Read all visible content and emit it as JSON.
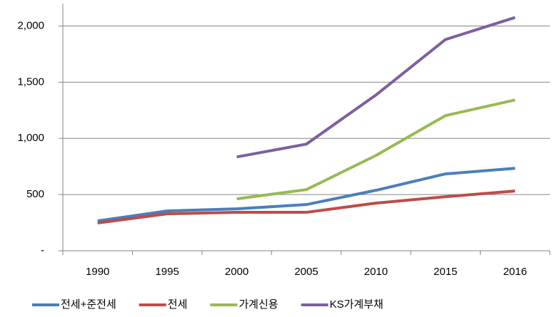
{
  "chart_data": {
    "type": "line",
    "categories": [
      "1990",
      "1995",
      "2000",
      "2005",
      "2010",
      "2015",
      "2016"
    ],
    "series": [
      {
        "name": "전세+준전세",
        "color": "#4a7ebb",
        "values": [
          266,
          354,
          373,
          411,
          538,
          684,
          734
        ]
      },
      {
        "name": "전세",
        "color": "#be4b48",
        "values": [
          247,
          329,
          342,
          342,
          424,
          481,
          532
        ]
      },
      {
        "name": "가계신용",
        "color": "#98b954",
        "values": [
          null,
          null,
          462,
          544,
          848,
          1203,
          1342
        ]
      },
      {
        "name": "KS가계부채",
        "color": "#7d5fa0",
        "values": [
          null,
          null,
          835,
          949,
          1386,
          1880,
          2076
        ]
      }
    ],
    "ylim": [
      0,
      2200
    ],
    "yticks": [
      {
        "value": 0,
        "label": "-"
      },
      500,
      {
        "value": 1000,
        "label": "1,000"
      },
      {
        "value": 1500,
        "label": "1,500"
      },
      {
        "value": 2000,
        "label": "2,000"
      }
    ],
    "grid": true,
    "legend": "bottom"
  }
}
